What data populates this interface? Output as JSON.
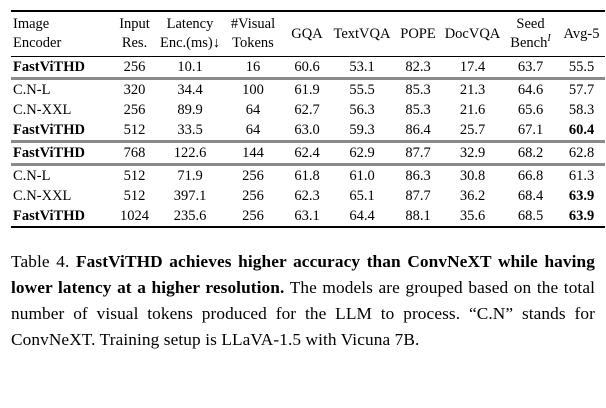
{
  "table": {
    "columns": [
      {
        "line1": "Image",
        "line2": "Encoder",
        "align": "left"
      },
      {
        "line1": "Input",
        "line2": "Res."
      },
      {
        "line1": "Latency",
        "line2": "Enc.(ms)↓"
      },
      {
        "line1": "#Visual",
        "line2": "Tokens"
      },
      {
        "label": "GQA"
      },
      {
        "label": "TextVQA"
      },
      {
        "label": "POPE"
      },
      {
        "label": "DocVQA"
      },
      {
        "line1": "Seed",
        "line2": "Bench",
        "line2_sup": "I"
      },
      {
        "label": "Avg-5"
      }
    ],
    "groups": [
      {
        "rows": [
          {
            "encoder": "FastViTHD",
            "bold_encoder": true,
            "values": [
              "256",
              "10.1",
              "16",
              "60.6",
              "53.1",
              "82.3",
              "17.4",
              "63.7",
              "55.5"
            ],
            "bold_last": false
          }
        ]
      },
      {
        "rows": [
          {
            "encoder": "C.N-L",
            "bold_encoder": false,
            "values": [
              "320",
              "34.4",
              "100",
              "61.9",
              "55.5",
              "85.3",
              "21.3",
              "64.6",
              "57.7"
            ],
            "bold_last": false
          },
          {
            "encoder": "C.N-XXL",
            "bold_encoder": false,
            "values": [
              "256",
              "89.9",
              "64",
              "62.7",
              "56.3",
              "85.3",
              "21.6",
              "65.6",
              "58.3"
            ],
            "bold_last": false
          },
          {
            "encoder": "FastViTHD",
            "bold_encoder": true,
            "values": [
              "512",
              "33.5",
              "64",
              "63.0",
              "59.3",
              "86.4",
              "25.7",
              "67.1",
              "60.4"
            ],
            "bold_last": true
          }
        ]
      },
      {
        "rows": [
          {
            "encoder": "FastViTHD",
            "bold_encoder": true,
            "values": [
              "768",
              "122.6",
              "144",
              "62.4",
              "62.9",
              "87.7",
              "32.9",
              "68.2",
              "62.8"
            ],
            "bold_last": false
          }
        ]
      },
      {
        "rows": [
          {
            "encoder": "C.N-L",
            "bold_encoder": false,
            "values": [
              "512",
              "71.9",
              "256",
              "61.8",
              "61.0",
              "86.3",
              "30.8",
              "66.8",
              "61.3"
            ],
            "bold_last": false
          },
          {
            "encoder": "C.N-XXL",
            "bold_encoder": false,
            "values": [
              "512",
              "397.1",
              "256",
              "62.3",
              "65.1",
              "87.7",
              "36.2",
              "68.4",
              "63.9"
            ],
            "bold_last": true
          },
          {
            "encoder": "FastViTHD",
            "bold_encoder": true,
            "values": [
              "1024",
              "235.6",
              "256",
              "63.1",
              "64.4",
              "88.1",
              "35.6",
              "68.5",
              "63.9"
            ],
            "bold_last": true
          }
        ]
      }
    ]
  },
  "caption": {
    "segments": [
      {
        "text": "Table 4. ",
        "bold": false
      },
      {
        "text": "FastViTHD achieves higher accuracy than ConvNeXT while having lower latency at a higher resolution.",
        "bold": true
      },
      {
        "text": " The models are grouped based on the total number of visual tokens produced for the LLM to process.  “C.N” stands for ConvNeXT. Training setup is LLaVA-1.5 with Vicuna 7B.",
        "bold": false
      }
    ]
  },
  "colors": {
    "rule_black": "#000000",
    "rule_group_gray": "#8a8a8a",
    "text": "#000000",
    "background": "#ffffff"
  }
}
